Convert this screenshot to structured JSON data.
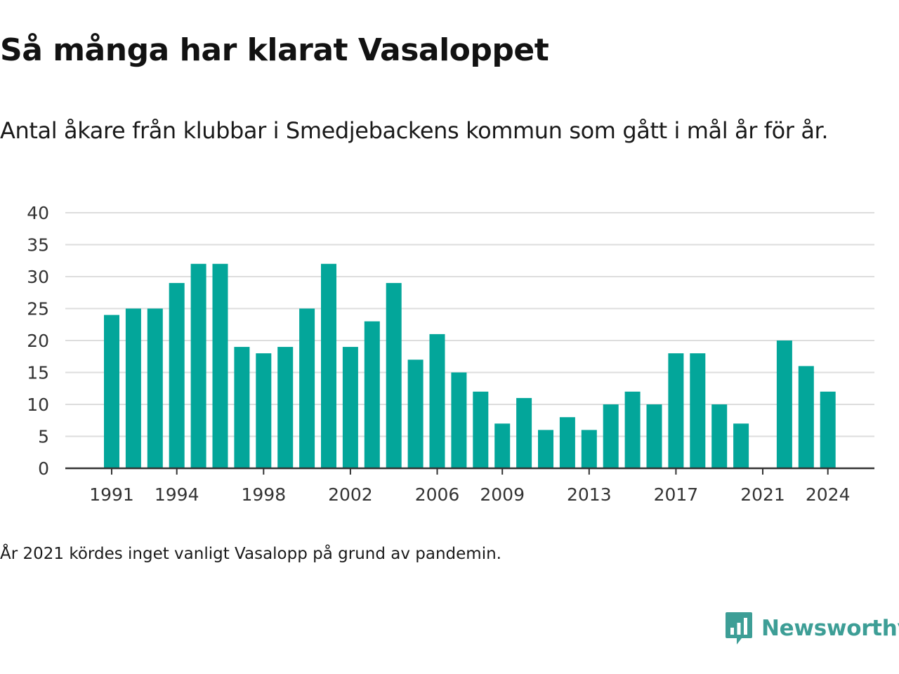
{
  "title": "Så många har klarat Vasaloppet",
  "subtitle": "Antal åkare från klubbar i Smedjebackens kommun som gått i mål år för år.",
  "note": "År 2021 kördes inget vanligt Vasalopp på grund av pandemin.",
  "brand": {
    "name": "Newsworthy",
    "icon": "newsworthy-logo-icon",
    "color": "#3d9e96"
  },
  "colors": {
    "bar": "#03a69a",
    "grid": "#dddddd",
    "axis": "#333333"
  },
  "chart_data": {
    "type": "bar",
    "title": "Så många har klarat Vasaloppet",
    "xlabel": "",
    "ylabel": "",
    "ylim": [
      0,
      40
    ],
    "yticks": [
      0,
      5,
      10,
      15,
      20,
      25,
      30,
      35,
      40
    ],
    "xticks": [
      1991,
      1994,
      1998,
      2002,
      2006,
      2009,
      2013,
      2017,
      2021,
      2024
    ],
    "grid": true,
    "legend": "none",
    "categories": [
      1991,
      1992,
      1993,
      1994,
      1995,
      1996,
      1997,
      1998,
      1999,
      2000,
      2001,
      2002,
      2003,
      2004,
      2005,
      2006,
      2007,
      2008,
      2009,
      2010,
      2011,
      2012,
      2013,
      2014,
      2015,
      2016,
      2017,
      2018,
      2019,
      2020,
      2021,
      2022,
      2023,
      2024
    ],
    "values": [
      24,
      25,
      25,
      29,
      32,
      32,
      19,
      18,
      19,
      25,
      32,
      19,
      23,
      29,
      17,
      21,
      15,
      12,
      7,
      11,
      6,
      8,
      6,
      10,
      12,
      10,
      18,
      18,
      10,
      7,
      0,
      20,
      16,
      12
    ]
  }
}
